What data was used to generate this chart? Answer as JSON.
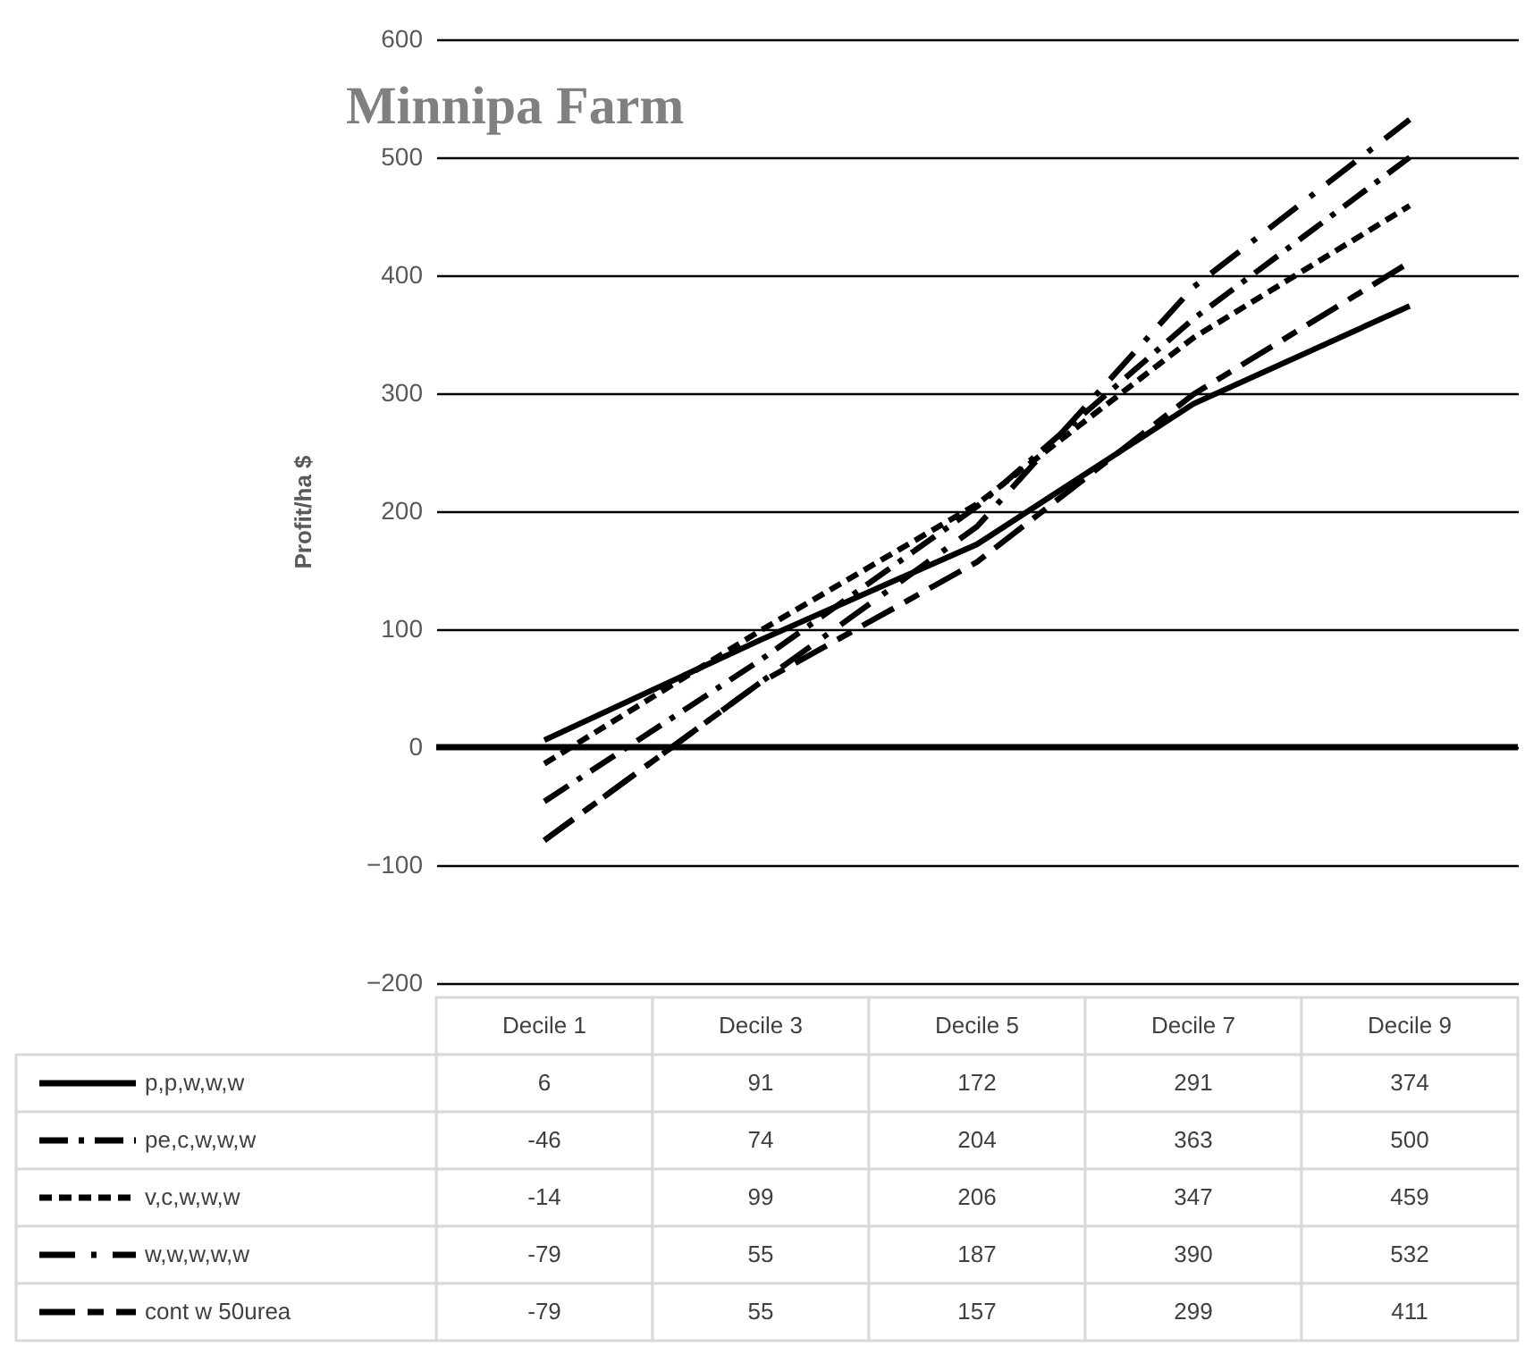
{
  "chart_data": {
    "type": "line",
    "title": "Minnipa Farm",
    "ylabel": "Profit/ha $",
    "categories": [
      "Decile 1",
      "Decile 3",
      "Decile 5",
      "Decile 7",
      "Decile 9"
    ],
    "series": [
      {
        "name": "p,p,w,w,w",
        "color": "#000000",
        "line_style": "solid",
        "values": [
          6,
          91,
          172,
          291,
          374
        ]
      },
      {
        "name": "pe,c,w,w,w",
        "color": "#000000",
        "line_style": "dashed",
        "values": [
          -46,
          74,
          204,
          363,
          500
        ]
      },
      {
        "name": "v,c,w,w,w",
        "color": "#000000",
        "line_style": "dashed",
        "values": [
          -14,
          99,
          206,
          347,
          459
        ]
      },
      {
        "name": "w,w,w,w,w",
        "color": "#000000",
        "line_style": "dashed",
        "values": [
          -79,
          55,
          187,
          390,
          532
        ]
      },
      {
        "name": "cont w 50urea",
        "color": "#000000",
        "line_style": "dashed",
        "values": [
          -79,
          55,
          157,
          299,
          411
        ]
      }
    ],
    "ylim": [
      -200,
      600
    ],
    "yticks": [
      -200,
      -100,
      0,
      100,
      200,
      300,
      400,
      500,
      600
    ],
    "grid": "y",
    "legend": "bottom",
    "data_labels": true,
    "ref_lines": [
      {
        "axis": "y",
        "value": 0
      }
    ]
  }
}
